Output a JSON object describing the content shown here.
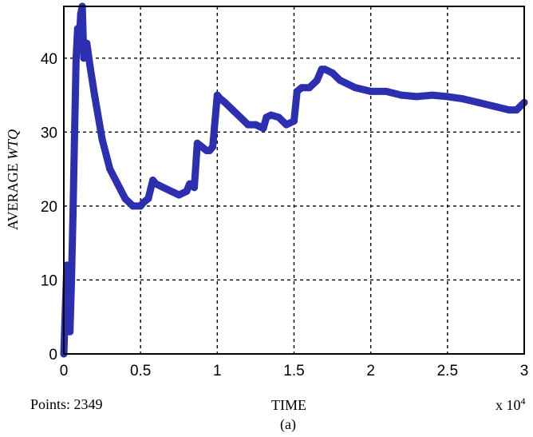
{
  "chart_data": {
    "type": "line",
    "title": "",
    "xlabel": "TIME",
    "ylabel_prefix": "AVERAGE ",
    "ylabel_italic": "WTQ",
    "x_exponent_note": "x 10",
    "x_exponent_power": "4",
    "points_note": "Points: 2349",
    "panel_label": "(a)",
    "xlim": [
      0,
      3
    ],
    "ylim": [
      0,
      47
    ],
    "xticks": [
      0,
      0.5,
      1,
      1.5,
      2,
      2.5,
      3
    ],
    "xtick_labels": [
      "0",
      "0.5",
      "1",
      "1.5",
      "2",
      "2.5",
      "3"
    ],
    "yticks": [
      0,
      10,
      20,
      30,
      40
    ],
    "ytick_labels": [
      "0",
      "10",
      "20",
      "30",
      "40"
    ],
    "grid": true,
    "series_color": "#2b2fb0",
    "series": [
      {
        "x": [
          0,
          0.02,
          0.03,
          0.04,
          0.05,
          0.06,
          0.07,
          0.08,
          0.09,
          0.1,
          0.11,
          0.12,
          0.13,
          0.15,
          0.17,
          0.2,
          0.25,
          0.3,
          0.35,
          0.4,
          0.45,
          0.5,
          0.52,
          0.55,
          0.58,
          0.6,
          0.65,
          0.7,
          0.75,
          0.8,
          0.82,
          0.85,
          0.87,
          0.9,
          0.93,
          0.95,
          0.97,
          1.0,
          1.02,
          1.05,
          1.1,
          1.15,
          1.2,
          1.25,
          1.3,
          1.32,
          1.35,
          1.4,
          1.45,
          1.5,
          1.52,
          1.55,
          1.6,
          1.65,
          1.68,
          1.7,
          1.75,
          1.8,
          1.85,
          1.9,
          2.0,
          2.1,
          2.2,
          2.3,
          2.4,
          2.5,
          2.6,
          2.7,
          2.8,
          2.9,
          2.95,
          3.0
        ],
        "y": [
          0,
          12,
          5,
          3,
          10,
          19,
          30,
          40,
          44,
          42,
          46,
          47,
          40,
          42,
          39,
          35,
          29,
          25,
          23,
          21,
          20,
          20,
          20.5,
          21,
          23.5,
          23,
          22.5,
          22,
          21.5,
          22,
          23,
          22.5,
          28.5,
          28,
          27.5,
          27.5,
          28,
          35,
          34.5,
          34,
          33,
          32,
          31,
          31,
          30.5,
          32,
          32.3,
          32,
          31,
          31.5,
          35.5,
          36,
          36,
          37,
          38.5,
          38.5,
          38,
          37,
          36.5,
          36,
          35.5,
          35.5,
          35,
          34.8,
          35,
          34.8,
          34.5,
          34,
          33.5,
          33,
          33,
          34
        ]
      }
    ]
  }
}
